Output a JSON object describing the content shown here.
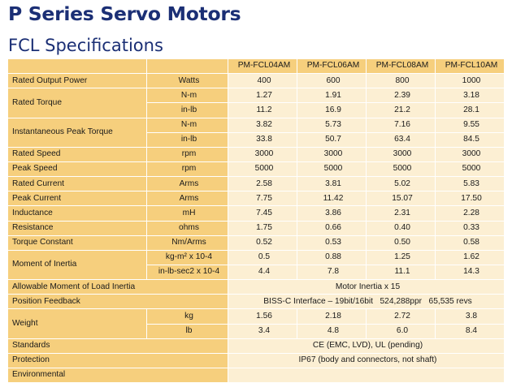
{
  "title": "P Series Servo Motors",
  "subtitle": "FCL Specifications",
  "models": [
    "PM-FCL04AM",
    "PM-FCL06AM",
    "PM-FCL08AM",
    "PM-FCL10AM"
  ],
  "rows": {
    "rated_output_power": {
      "label": "Rated Output Power",
      "unit": "Watts",
      "values": [
        "400",
        "600",
        "800",
        "1000"
      ]
    },
    "rated_torque": {
      "label": "Rated Torque",
      "nm": {
        "unit": "N-m",
        "values": [
          "1.27",
          "1.91",
          "2.39",
          "3.18"
        ]
      },
      "inlb": {
        "unit": "in-lb",
        "values": [
          "11.2",
          "16.9",
          "21.2",
          "28.1"
        ]
      }
    },
    "peak_torque": {
      "label": "Instantaneous Peak Torque",
      "nm": {
        "unit": "N-m",
        "values": [
          "3.82",
          "5.73",
          "7.16",
          "9.55"
        ]
      },
      "inlb": {
        "unit": "in-lb",
        "values": [
          "33.8",
          "50.7",
          "63.4",
          "84.5"
        ]
      }
    },
    "rated_speed": {
      "label": "Rated Speed",
      "unit": "rpm",
      "values": [
        "3000",
        "3000",
        "3000",
        "3000"
      ]
    },
    "peak_speed": {
      "label": "Peak Speed",
      "unit": "rpm",
      "values": [
        "5000",
        "5000",
        "5000",
        "5000"
      ]
    },
    "rated_current": {
      "label": "Rated Current",
      "unit": "Arms",
      "values": [
        "2.58",
        "3.81",
        "5.02",
        "5.83"
      ]
    },
    "peak_current": {
      "label": "Peak Current",
      "unit": "Arms",
      "values": [
        "7.75",
        "11.42",
        "15.07",
        "17.50"
      ]
    },
    "inductance": {
      "label": "Inductance",
      "unit": "mH",
      "values": [
        "7.45",
        "3.86",
        "2.31",
        "2.28"
      ]
    },
    "resistance": {
      "label": "Resistance",
      "unit": "ohms",
      "values": [
        "1.75",
        "0.66",
        "0.40",
        "0.33"
      ]
    },
    "torque_constant": {
      "label": "Torque Constant",
      "unit": "Nm/Arms",
      "values": [
        "0.52",
        "0.53",
        "0.50",
        "0.58"
      ]
    },
    "moment_of_inertia": {
      "label": "Moment of Inertia",
      "kgm2": {
        "unit": "kg-m² x 10-4",
        "values": [
          "0.5",
          "0.88",
          "1.25",
          "1.62"
        ]
      },
      "inlb": {
        "unit": "in-lb-sec2 x 10-4",
        "values": [
          "4.4",
          "7.8",
          "11.1",
          "14.3"
        ]
      }
    },
    "load_inertia": {
      "label": "Allowable Moment of Load Inertia",
      "value": "Motor Inertia x 15"
    },
    "position_feedback": {
      "label": "Position Feedback",
      "value": "BISS-C Interface – 19bit/16bit   524,288ppr   65,535 revs"
    },
    "weight": {
      "label": "Weight",
      "kg": {
        "unit": "kg",
        "values": [
          "1.56",
          "2.18",
          "2.72",
          "3.8"
        ]
      },
      "lb": {
        "unit": "lb",
        "values": [
          "3.4",
          "4.8",
          "6.0",
          "8.4"
        ]
      }
    },
    "standards": {
      "label": "Standards",
      "value": "CE (EMC, LVD), UL (pending)"
    },
    "protection": {
      "label": "Protection",
      "value": "IP67 (body and connectors, not shaft)"
    },
    "environmental": {
      "label": "Environmental",
      "value": ""
    }
  },
  "colors": {
    "title": "#1b2f75",
    "label_bg": "#f6cf7d",
    "value_bg": "#fcefd3",
    "divider": "#ffffff"
  }
}
